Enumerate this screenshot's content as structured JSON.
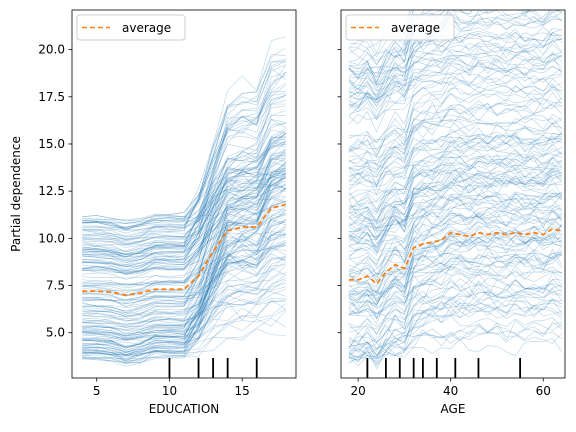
{
  "figure": {
    "y_axis_label": "Partial dependence",
    "legend_label": "average"
  },
  "chart_data": [
    {
      "type": "line",
      "xlabel": "EDUCATION",
      "ylabel": "Partial dependence",
      "xlim": [
        3.3,
        18.7
      ],
      "ylim": [
        2.6,
        22.1
      ],
      "x_ticks": [
        5,
        10,
        15
      ],
      "y_ticks": [
        5.0,
        7.5,
        10.0,
        12.5,
        15.0,
        17.5,
        20.0
      ],
      "y_tick_labels": [
        "5.0",
        "7.5",
        "10.0",
        "12.5",
        "15.0",
        "17.5",
        "20.0"
      ],
      "legend": {
        "position": "top-left",
        "entries": [
          "average"
        ]
      },
      "grid": false,
      "ice_color": "#1f77b4",
      "average_color": "#ff7f0e",
      "ice_x": [
        4,
        5,
        6,
        7,
        8,
        9,
        10,
        11,
        12,
        13,
        14,
        15,
        16,
        17,
        18
      ],
      "ice_baseline_range": [
        3.6,
        11.2
      ],
      "ice_endpoint_range": [
        6.0,
        21.0
      ],
      "average_series": {
        "name": "average",
        "x": [
          4,
          5,
          6,
          7,
          8,
          9,
          10,
          11,
          12,
          13,
          14,
          15,
          16,
          17,
          18
        ],
        "y": [
          7.2,
          7.2,
          7.15,
          7.0,
          7.1,
          7.3,
          7.3,
          7.3,
          8.0,
          9.3,
          10.4,
          10.6,
          10.6,
          11.6,
          11.8
        ]
      },
      "deciles": [
        10,
        12,
        13,
        14,
        16
      ]
    },
    {
      "type": "line",
      "xlabel": "AGE",
      "ylabel": "",
      "xlim": [
        16.3,
        64.7
      ],
      "ylim": [
        2.6,
        22.1
      ],
      "x_ticks": [
        20,
        40,
        60
      ],
      "y_ticks": [
        5.0,
        7.5,
        10.0,
        12.5,
        15.0,
        17.5,
        20.0
      ],
      "legend": {
        "position": "top-left",
        "entries": [
          "average"
        ]
      },
      "grid": false,
      "ice_color": "#1f77b4",
      "average_color": "#ff7f0e",
      "ice_x": [
        18,
        20,
        22,
        24,
        26,
        28,
        30,
        32,
        34,
        36,
        38,
        40,
        42,
        44,
        46,
        48,
        50,
        52,
        54,
        56,
        58,
        60,
        62,
        64
      ],
      "ice_baseline_range": [
        3.5,
        20.5
      ],
      "average_series": {
        "name": "average",
        "x": [
          18,
          20,
          22,
          24,
          26,
          28,
          30,
          32,
          34,
          36,
          38,
          40,
          42,
          44,
          46,
          48,
          50,
          52,
          54,
          56,
          58,
          60,
          62,
          64
        ],
        "y": [
          7.8,
          7.8,
          8.0,
          7.6,
          8.2,
          8.6,
          8.4,
          9.5,
          9.7,
          9.8,
          9.9,
          10.3,
          10.2,
          10.1,
          10.3,
          10.2,
          10.3,
          10.2,
          10.3,
          10.2,
          10.3,
          10.2,
          10.5,
          10.4
        ]
      },
      "deciles": [
        22,
        26,
        29,
        32,
        34,
        37,
        41,
        46,
        55
      ]
    }
  ]
}
